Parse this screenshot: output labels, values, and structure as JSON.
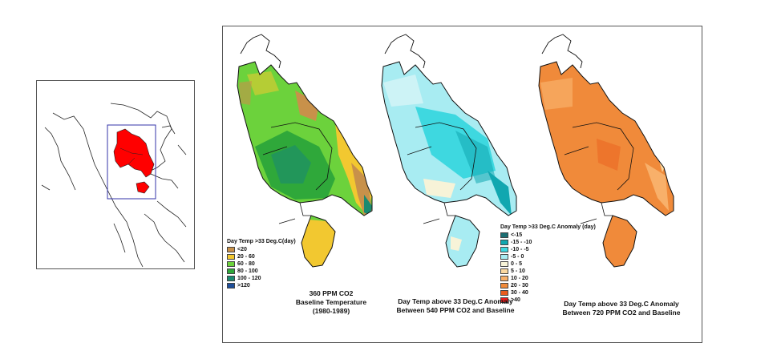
{
  "locator": {
    "highlight_color": "#ff0000",
    "frame_color": "#3333aa"
  },
  "maps": [
    {
      "id": "baseline",
      "legend": {
        "title": "Day Temp >33  Deg.C(day)",
        "items": [
          {
            "label": "<20",
            "color": "#c8914a"
          },
          {
            "label": "20 - 60",
            "color": "#f2c830"
          },
          {
            "label": "60 - 80",
            "color": "#6cd23c"
          },
          {
            "label": "80 - 100",
            "color": "#2fa83a"
          },
          {
            "label": "100 - 120",
            "color": "#1a8a70"
          },
          {
            "label": ">120",
            "color": "#1f4f9a"
          }
        ]
      },
      "caption": [
        "360 PPM CO2",
        "Baseline Temperature",
        "(1980-1989)"
      ]
    },
    {
      "id": "anomaly-540",
      "caption": [
        "Day Temp above 33 Deg.C  Anomaly",
        "Between 540 PPM CO2 and Baseline"
      ]
    },
    {
      "id": "anomaly-720",
      "caption": [
        "Day Temp above 33 Deg.C  Anomaly",
        "Between 720 PPM CO2 and Baseline"
      ]
    }
  ],
  "anomaly_legend": {
    "title": "Day Temp >33  Deg.C Anomaly (day)",
    "items": [
      {
        "label": "<-15",
        "color": "#1c6e73"
      },
      {
        "label": "-15 - -10",
        "color": "#11a7b0"
      },
      {
        "label": "-10 - -5",
        "color": "#3ed8e0"
      },
      {
        "label": "-5 - 0",
        "color": "#a8ecf2"
      },
      {
        "label": "0 - 5",
        "color": "#f7f3d8"
      },
      {
        "label": "5 - 10",
        "color": "#fbd8a0"
      },
      {
        "label": "10 - 20",
        "color": "#f8b06a"
      },
      {
        "label": "20 - 30",
        "color": "#f08a3a"
      },
      {
        "label": "30 - 40",
        "color": "#e85b1d"
      },
      {
        "label": ">40",
        "color": "#e81c1c"
      }
    ]
  }
}
